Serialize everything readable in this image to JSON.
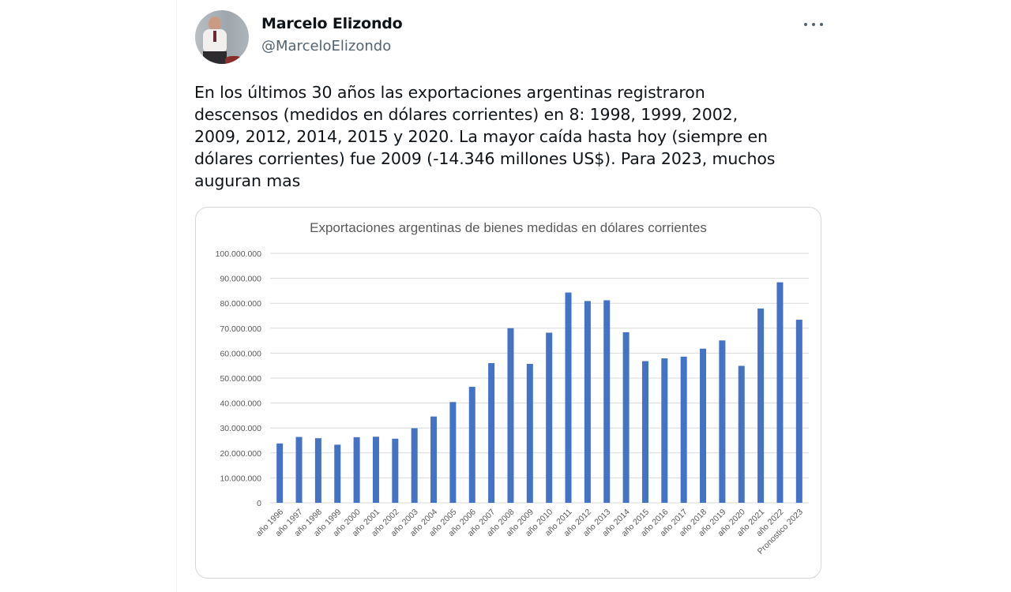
{
  "tweet": {
    "author_name": "Marcelo Elizondo",
    "author_handle": "@MarceloElizondo",
    "more_icon": "more-horizontal-icon",
    "text": "En los últimos 30 años las exportaciones argentinas registraron\ndescensos (medidos en dólares corrientes) en 8: 1998, 1999, 2002,\n2009, 2012, 2014, 2015 y 2020. La mayor caída hasta hoy (siempre en\ndólares corrientes) fue 2009 (-14.346 millones US$). Para 2023, muchos\nauguran mas"
  },
  "colors": {
    "bar": "#4472c4",
    "grid": "#d9d9d9",
    "axis_text": "#595959",
    "handle": "#536471"
  },
  "chart_data": {
    "type": "bar",
    "title": "Exportaciones argentinas de bienes medidas en dólares corrientes",
    "xlabel": "",
    "ylabel": "",
    "ylim": [
      0,
      100000000
    ],
    "yticks": [
      0,
      10000000,
      20000000,
      30000000,
      40000000,
      50000000,
      60000000,
      70000000,
      80000000,
      90000000,
      100000000
    ],
    "ytick_labels": [
      "0",
      "10.000.000",
      "20.000.000",
      "30.000.000",
      "40.000.000",
      "50.000.000",
      "60.000.000",
      "70.000.000",
      "80.000.000",
      "90.000.000",
      "100.000.000"
    ],
    "grid": true,
    "legend": null,
    "categories": [
      "año 1996",
      "año 1997",
      "año 1998",
      "año 1999",
      "año 2000",
      "año 2001",
      "año 2002",
      "año 2003",
      "año 2004",
      "año 2005",
      "año 2006",
      "año 2007",
      "año 2008",
      "año 2009",
      "año 2010",
      "año 2011",
      "año 2012",
      "año 2013",
      "año 2014",
      "año 2015",
      "año 2016",
      "año 2017",
      "año 2018",
      "año 2019",
      "año 2020",
      "año 2021",
      "año 2022",
      "Pronostico 2023"
    ],
    "values": [
      23800000,
      26400000,
      25900000,
      23300000,
      26300000,
      26500000,
      25700000,
      29900000,
      34600000,
      40400000,
      46500000,
      56000000,
      70000000,
      55700000,
      68200000,
      84300000,
      80900000,
      81200000,
      68400000,
      56800000,
      57900000,
      58600000,
      61800000,
      65100000,
      54900000,
      77900000,
      88400000,
      73400000
    ]
  }
}
